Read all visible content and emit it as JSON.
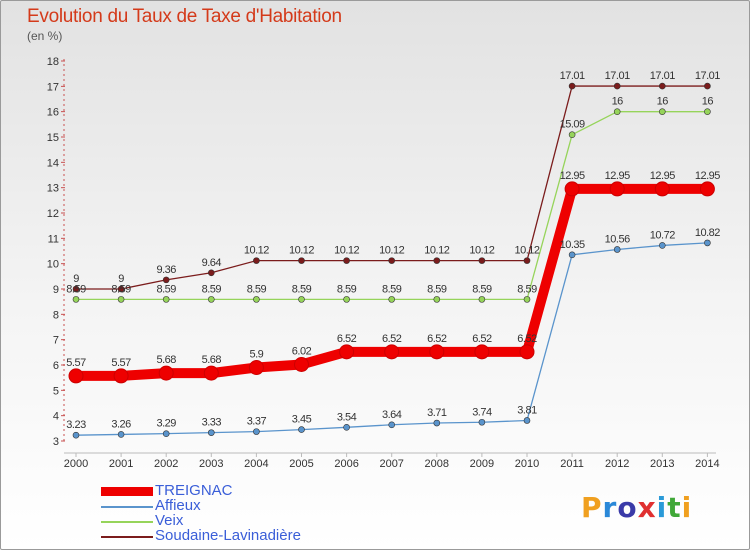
{
  "header": {
    "title": "Evolution du Taux de Taxe d'Habitation",
    "unit": "(en %)"
  },
  "brand": {
    "text": "Proxiti",
    "letter_colors": [
      "#f0a020",
      "#2a88d8",
      "#3a3aa8",
      "#e03030",
      "#2a9ad8",
      "#40a838",
      "#f0a020"
    ]
  },
  "chart_data": {
    "type": "line",
    "x": [
      "2000",
      "2001",
      "2002",
      "2003",
      "2004",
      "2005",
      "2006",
      "2007",
      "2008",
      "2009",
      "2010",
      "2011",
      "2012",
      "2013",
      "2014"
    ],
    "ylim": [
      3,
      18
    ],
    "yticks": [
      "3",
      "4",
      "5",
      "6",
      "7",
      "8",
      "9",
      "10",
      "11",
      "12",
      "13",
      "14",
      "15",
      "16",
      "17",
      "18"
    ],
    "grid": false,
    "legend_position": "bottom-left",
    "series": [
      {
        "name": "Soudaine-Lavinadière",
        "color": "#7b1c1c",
        "values": [
          9,
          9,
          9.36,
          9.64,
          10.12,
          10.12,
          10.12,
          10.12,
          10.12,
          10.12,
          10.12,
          17.01,
          17.01,
          17.01,
          17.01
        ],
        "labels": [
          "9",
          "9",
          "9.36",
          "9.64",
          "10.12",
          "10.12",
          "10.12",
          "10.12",
          "10.12",
          "10.12",
          "10.12",
          "17.01",
          "17.01",
          "17.01",
          "17.01"
        ]
      },
      {
        "name": "Veix",
        "color": "#96d45a",
        "values": [
          8.59,
          8.59,
          8.59,
          8.59,
          8.59,
          8.59,
          8.59,
          8.59,
          8.59,
          8.59,
          8.59,
          15.09,
          16,
          16,
          16
        ],
        "labels": [
          "8.59",
          "8.59",
          "8.59",
          "8.59",
          "8.59",
          "8.59",
          "8.59",
          "8.59",
          "8.59",
          "8.59",
          "8.59",
          "15.09",
          "16",
          "16",
          "16"
        ]
      },
      {
        "name": "Affieux",
        "color": "#5a94cc",
        "values": [
          3.23,
          3.26,
          3.29,
          3.33,
          3.37,
          3.45,
          3.54,
          3.64,
          3.71,
          3.74,
          3.81,
          10.35,
          10.56,
          10.72,
          10.82
        ],
        "labels": [
          "3.23",
          "3.26",
          "3.29",
          "3.33",
          "3.37",
          "3.45",
          "3.54",
          "3.64",
          "3.71",
          "3.74",
          "3.81",
          "10.35",
          "10.56",
          "10.72",
          "10.82"
        ]
      },
      {
        "name": "TREIGNAC",
        "color": "#ee0000",
        "values": [
          5.57,
          5.57,
          5.68,
          5.68,
          5.9,
          6.02,
          6.52,
          6.52,
          6.52,
          6.52,
          6.52,
          12.95,
          12.95,
          12.95,
          12.95
        ],
        "labels": [
          "5.57",
          "5.57",
          "5.68",
          "5.68",
          "5.9",
          "6.02",
          "6.52",
          "6.52",
          "6.52",
          "6.52",
          "6.52",
          "12.95",
          "12.95",
          "12.95",
          "12.95"
        ]
      }
    ],
    "legend": [
      "TREIGNAC",
      "Affieux",
      "Veix",
      "Soudaine-Lavinadière"
    ]
  }
}
